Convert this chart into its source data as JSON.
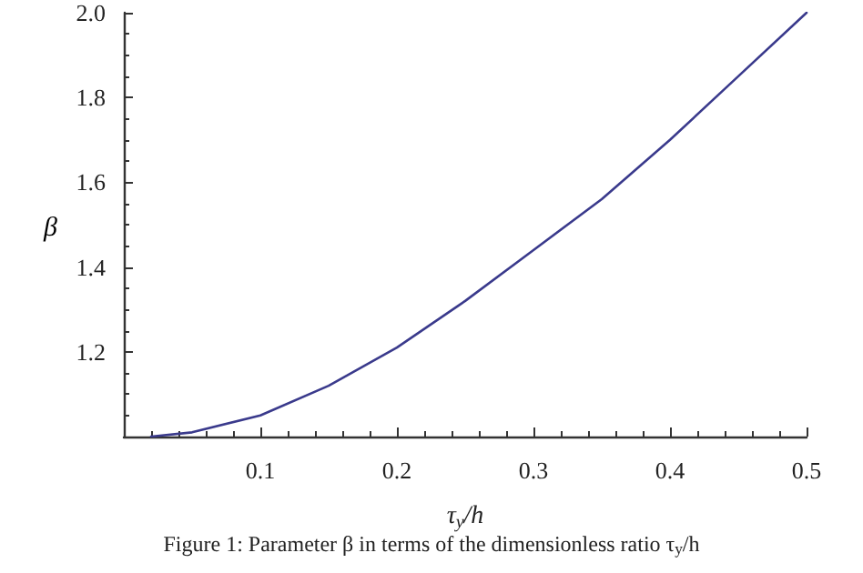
{
  "chart_data": {
    "type": "line",
    "x": [
      0.02,
      0.05,
      0.1,
      0.15,
      0.2,
      0.25,
      0.3,
      0.35,
      0.4,
      0.45,
      0.5
    ],
    "series": [
      {
        "color": "#3a3a8c",
        "values": [
          1.0,
          1.01,
          1.05,
          1.12,
          1.21,
          1.32,
          1.44,
          1.56,
          1.7,
          1.85,
          2.0
        ]
      }
    ],
    "xlabel": "τ$_{y}$/h",
    "ylabel": "β",
    "xlim": [
      0,
      0.5
    ],
    "xticks": [
      0.1,
      0.2,
      0.3,
      0.4,
      0.5
    ],
    "ylim": [
      1.0,
      2.0
    ],
    "yticks": [
      1.2,
      1.4,
      1.6,
      1.8,
      {
        "value": 2,
        "label": "2.0"
      }
    ],
    "grid": false,
    "marker": "none",
    "line_style": "solid",
    "annotations": [
      "Figure 1: Parameter β in terms of the dimensionless ratio τ$_{y}$/h"
    ]
  }
}
